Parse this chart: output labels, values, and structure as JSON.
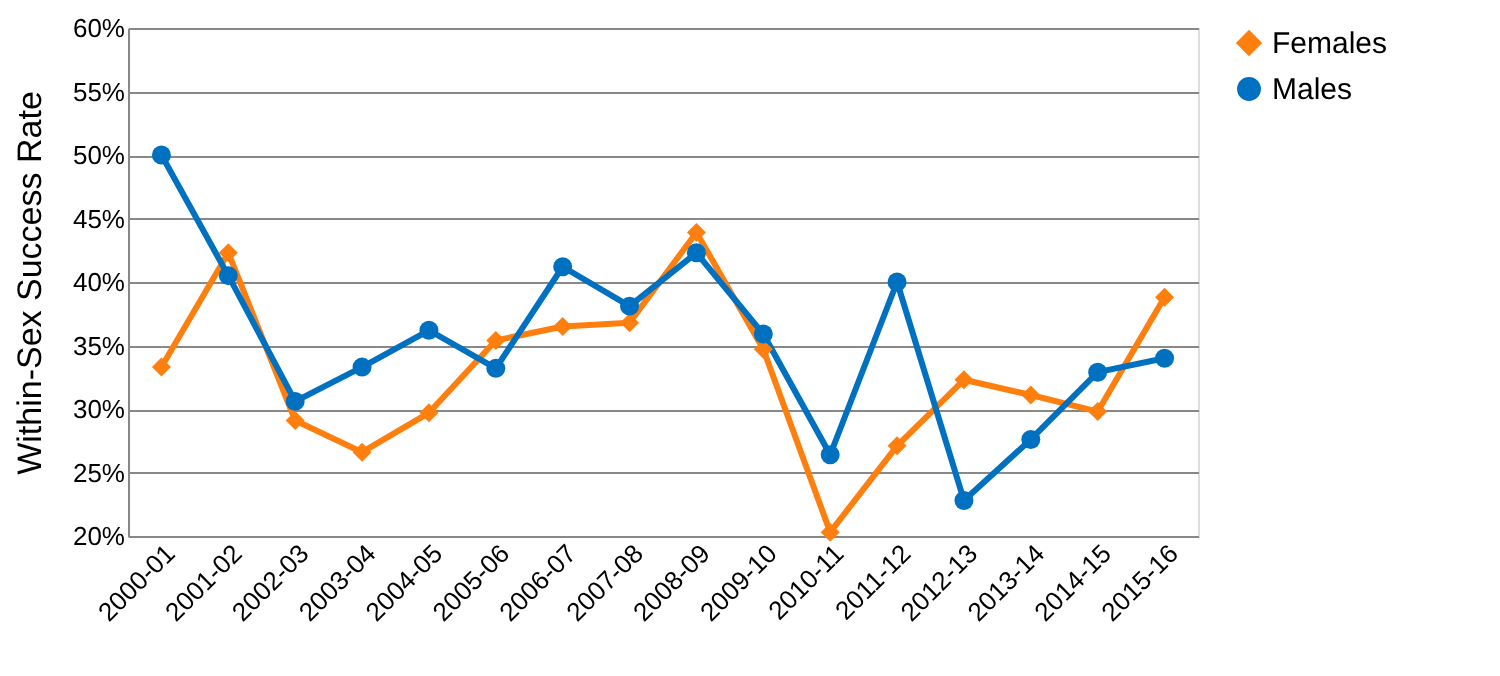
{
  "chart_data": {
    "type": "line",
    "ylabel": "Within-Sex Success Rate",
    "categories": [
      "2000-01",
      "2001-02",
      "2002-03",
      "2003-04",
      "2004-05",
      "2005-06",
      "2006-07",
      "2007-08",
      "2008-09",
      "2009-10",
      "2010-11",
      "2011-12",
      "2012-13",
      "2013-14",
      "2014-15",
      "2015-16"
    ],
    "series": [
      {
        "name": "Females",
        "color": "#ff7f0e",
        "marker": "diamond",
        "values": [
          33.3,
          42.3,
          29.1,
          26.6,
          29.7,
          35.4,
          36.5,
          36.8,
          43.9,
          34.7,
          20.3,
          27.1,
          32.3,
          31.1,
          29.8,
          38.8
        ]
      },
      {
        "name": "Males",
        "color": "#0070c0",
        "marker": "circle",
        "values": [
          50.0,
          40.5,
          30.6,
          33.3,
          36.2,
          33.2,
          41.2,
          38.1,
          42.3,
          35.9,
          26.4,
          40.0,
          22.8,
          27.6,
          32.9,
          34.0
        ]
      }
    ],
    "ylim": [
      20,
      60
    ],
    "yticks": [
      {
        "value": 20,
        "label": "20%"
      },
      {
        "value": 25,
        "label": "25%"
      },
      {
        "value": 30,
        "label": "30%"
      },
      {
        "value": 35,
        "label": "35%"
      },
      {
        "value": 40,
        "label": "40%"
      },
      {
        "value": 45,
        "label": "45%"
      },
      {
        "value": 50,
        "label": "50%"
      },
      {
        "value": 55,
        "label": "55%"
      },
      {
        "value": 60,
        "label": "60%"
      }
    ],
    "grid": "y",
    "legend": "top right",
    "line_style": "solid"
  }
}
